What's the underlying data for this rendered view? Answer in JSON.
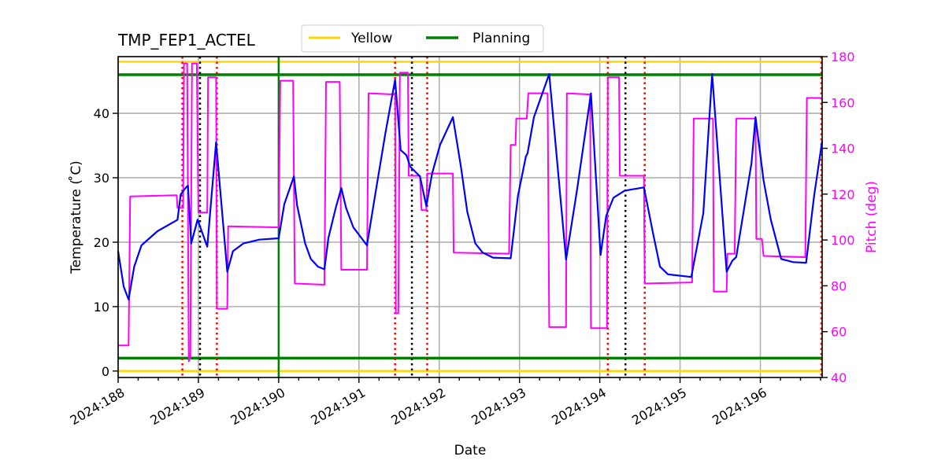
{
  "chart_data": {
    "type": "line",
    "title": "TMP_FEP1_ACTEL",
    "xlabel": "Date",
    "ylabel": "Temperature ($^\\circ$C)",
    "ylabel_display": "Temperature ( ̊C)",
    "y2label": "Pitch (deg)",
    "xlim": [
      188.0,
      196.77
    ],
    "ylim": [
      -1.0,
      48.8
    ],
    "y2lim": [
      40,
      180
    ],
    "grid": true,
    "x_ticks": [
      {
        "value": 188,
        "label": "2024:188"
      },
      {
        "value": 189,
        "label": "2024:189"
      },
      {
        "value": 190,
        "label": "2024:190"
      },
      {
        "value": 191,
        "label": "2024:191"
      },
      {
        "value": 192,
        "label": "2024:192"
      },
      {
        "value": 193,
        "label": "2024:193"
      },
      {
        "value": 194,
        "label": "2024:194"
      },
      {
        "value": 195,
        "label": "2024:195"
      },
      {
        "value": 196,
        "label": "2024:196"
      }
    ],
    "y_ticks": [
      0,
      10,
      20,
      30,
      40
    ],
    "y2_ticks": [
      40,
      60,
      80,
      100,
      120,
      140,
      160,
      180
    ],
    "legend": {
      "position": "top-center",
      "entries": [
        {
          "label": "Yellow",
          "color": "#ffd700"
        },
        {
          "label": "Planning",
          "color": "#008000"
        }
      ]
    },
    "limit_lines": [
      {
        "name": "Yellow",
        "value": 48.0,
        "color": "#ffd700"
      },
      {
        "name": "Yellow",
        "value": 0.0,
        "color": "#ffd700"
      },
      {
        "name": "Planning",
        "value": 46.0,
        "color": "#008000"
      },
      {
        "name": "Planning",
        "value": 2.0,
        "color": "#008000"
      }
    ],
    "vertical_lines": [
      {
        "x": 188.8,
        "color": "#ff0000",
        "style": "dotted"
      },
      {
        "x": 189.02,
        "color": "#000000",
        "style": "dotted"
      },
      {
        "x": 189.23,
        "color": "#ff0000",
        "style": "dotted"
      },
      {
        "x": 190.0,
        "color": "#008000",
        "style": "solid"
      },
      {
        "x": 191.45,
        "color": "#ff0000",
        "style": "dotted"
      },
      {
        "x": 191.66,
        "color": "#000000",
        "style": "dotted"
      },
      {
        "x": 191.85,
        "color": "#ff0000",
        "style": "dotted"
      },
      {
        "x": 194.1,
        "color": "#ff0000",
        "style": "dotted"
      },
      {
        "x": 194.32,
        "color": "#000000",
        "style": "dotted"
      },
      {
        "x": 194.56,
        "color": "#ff0000",
        "style": "dotted"
      },
      {
        "x": 196.76,
        "color": "#ff0000",
        "style": "dotted"
      }
    ],
    "series": [
      {
        "name": "TMP_FEP1_ACTEL",
        "axis": "left",
        "color": "#0000ff",
        "points": [
          [
            188.0,
            18.6
          ],
          [
            188.07,
            13.1
          ],
          [
            188.13,
            11.1
          ],
          [
            188.2,
            16.2
          ],
          [
            188.29,
            19.5
          ],
          [
            188.49,
            21.7
          ],
          [
            188.73,
            23.4
          ],
          [
            188.74,
            23.5
          ],
          [
            188.78,
            27.4
          ],
          [
            188.84,
            28.4
          ],
          [
            188.87,
            28.8
          ],
          [
            188.91,
            19.8
          ],
          [
            188.99,
            23.5
          ],
          [
            189.11,
            19.3
          ],
          [
            189.22,
            35.5
          ],
          [
            189.36,
            15.4
          ],
          [
            189.43,
            18.6
          ],
          [
            189.56,
            19.8
          ],
          [
            189.76,
            20.4
          ],
          [
            190.0,
            20.6
          ],
          [
            190.07,
            25.9
          ],
          [
            190.19,
            30.2
          ],
          [
            190.23,
            25.7
          ],
          [
            190.33,
            19.8
          ],
          [
            190.4,
            17.4
          ],
          [
            190.49,
            16.2
          ],
          [
            190.57,
            15.8
          ],
          [
            190.62,
            20.7
          ],
          [
            190.71,
            25.3
          ],
          [
            190.78,
            28.4
          ],
          [
            190.84,
            25.3
          ],
          [
            190.93,
            22.3
          ],
          [
            191.1,
            19.5
          ],
          [
            191.2,
            27.2
          ],
          [
            191.33,
            37.0
          ],
          [
            191.45,
            45.2
          ],
          [
            191.52,
            34.3
          ],
          [
            191.59,
            33.5
          ],
          [
            191.64,
            31.7
          ],
          [
            191.76,
            30.2
          ],
          [
            191.84,
            25.6
          ],
          [
            191.91,
            30.6
          ],
          [
            192.01,
            35.1
          ],
          [
            192.17,
            39.4
          ],
          [
            192.27,
            31.7
          ],
          [
            192.35,
            24.7
          ],
          [
            192.45,
            19.8
          ],
          [
            192.54,
            18.4
          ],
          [
            192.67,
            17.6
          ],
          [
            192.89,
            17.5
          ],
          [
            192.98,
            27.2
          ],
          [
            193.08,
            33.3
          ],
          [
            193.1,
            33.8
          ],
          [
            193.18,
            39.4
          ],
          [
            193.37,
            46.1
          ],
          [
            193.58,
            17.3
          ],
          [
            193.72,
            28.4
          ],
          [
            193.89,
            43.1
          ],
          [
            194.01,
            18.0
          ],
          [
            194.08,
            24.1
          ],
          [
            194.17,
            26.9
          ],
          [
            194.31,
            28.0
          ],
          [
            194.55,
            28.5
          ],
          [
            194.67,
            21.0
          ],
          [
            194.75,
            16.2
          ],
          [
            194.85,
            15.0
          ],
          [
            195.14,
            14.6
          ],
          [
            195.29,
            24.5
          ],
          [
            195.4,
            46.1
          ],
          [
            195.58,
            15.4
          ],
          [
            195.65,
            17.1
          ],
          [
            195.7,
            17.7
          ],
          [
            195.89,
            32.3
          ],
          [
            195.94,
            39.4
          ],
          [
            196.04,
            29.6
          ],
          [
            196.13,
            23.5
          ],
          [
            196.26,
            17.4
          ],
          [
            196.41,
            16.9
          ],
          [
            196.57,
            16.8
          ],
          [
            196.67,
            27.2
          ],
          [
            196.77,
            35.7
          ]
        ]
      },
      {
        "name": "Pitch",
        "axis": "right",
        "color": "#ff00ff",
        "points": [
          [
            188.0,
            54
          ],
          [
            188.13,
            54
          ],
          [
            188.15,
            119
          ],
          [
            188.73,
            119.5
          ],
          [
            188.74,
            114
          ],
          [
            188.81,
            114
          ],
          [
            188.82,
            177
          ],
          [
            188.86,
            177
          ],
          [
            188.88,
            47
          ],
          [
            188.9,
            49
          ],
          [
            188.92,
            177
          ],
          [
            188.98,
            177
          ],
          [
            189.0,
            112
          ],
          [
            189.11,
            112
          ],
          [
            189.12,
            171
          ],
          [
            189.22,
            171
          ],
          [
            189.23,
            70
          ],
          [
            189.36,
            70
          ],
          [
            189.37,
            106
          ],
          [
            190.0,
            105.5
          ],
          [
            190.02,
            169.5
          ],
          [
            190.18,
            169.5
          ],
          [
            190.2,
            81
          ],
          [
            190.57,
            80.5
          ],
          [
            190.59,
            169
          ],
          [
            190.76,
            169
          ],
          [
            190.78,
            87
          ],
          [
            191.1,
            87
          ],
          [
            191.12,
            164
          ],
          [
            191.45,
            163.5
          ],
          [
            191.46,
            68
          ],
          [
            191.49,
            68
          ],
          [
            191.51,
            173
          ],
          [
            191.61,
            173
          ],
          [
            191.62,
            128
          ],
          [
            191.76,
            128
          ],
          [
            191.78,
            113
          ],
          [
            191.84,
            113
          ],
          [
            191.85,
            129
          ],
          [
            192.17,
            129
          ],
          [
            192.18,
            94.5
          ],
          [
            192.87,
            94
          ],
          [
            192.89,
            141.5
          ],
          [
            192.95,
            141.5
          ],
          [
            192.96,
            153
          ],
          [
            193.09,
            153
          ],
          [
            193.11,
            164
          ],
          [
            193.35,
            164
          ],
          [
            193.37,
            62
          ],
          [
            193.58,
            62
          ],
          [
            193.59,
            164
          ],
          [
            193.88,
            163.5
          ],
          [
            193.89,
            61.5
          ],
          [
            194.09,
            61.5
          ],
          [
            194.1,
            171
          ],
          [
            194.24,
            171
          ],
          [
            194.25,
            128
          ],
          [
            194.55,
            128
          ],
          [
            194.56,
            81
          ],
          [
            195.15,
            81.5
          ],
          [
            195.17,
            153
          ],
          [
            195.41,
            153
          ],
          [
            195.42,
            77.5
          ],
          [
            195.58,
            77.5
          ],
          [
            195.59,
            94
          ],
          [
            195.68,
            94
          ],
          [
            195.7,
            153
          ],
          [
            195.94,
            153
          ],
          [
            195.95,
            100.5
          ],
          [
            196.02,
            100.5
          ],
          [
            196.04,
            93
          ],
          [
            196.56,
            92.5
          ],
          [
            196.58,
            162
          ],
          [
            196.77,
            162
          ]
        ]
      }
    ]
  }
}
